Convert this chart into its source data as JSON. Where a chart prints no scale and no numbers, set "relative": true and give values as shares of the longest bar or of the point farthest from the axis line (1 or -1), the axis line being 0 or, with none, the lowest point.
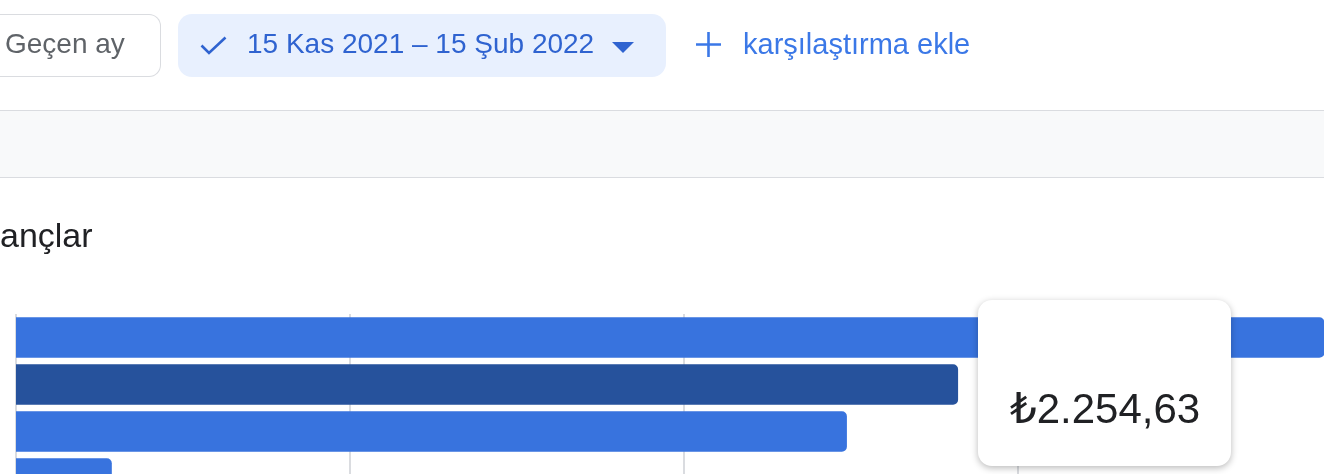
{
  "chart_data": {
    "type": "bar",
    "orientation": "horizontal",
    "title": "ançlar",
    "subtitle": "15 Kas 2021 – 15 Şub 2022",
    "categories": [
      null,
      null,
      null,
      null
    ],
    "values": [
      1,
      0.72,
      0.635,
      0.073
    ],
    "colors": [
      "#3873de",
      "#26529c",
      "#3873de",
      "#3873de"
    ],
    "relative": true,
    "grid": "x",
    "annotations": [
      "Geçen ay",
      "karşılaştırma ekle",
      "₺2.254,63"
    ]
  }
}
